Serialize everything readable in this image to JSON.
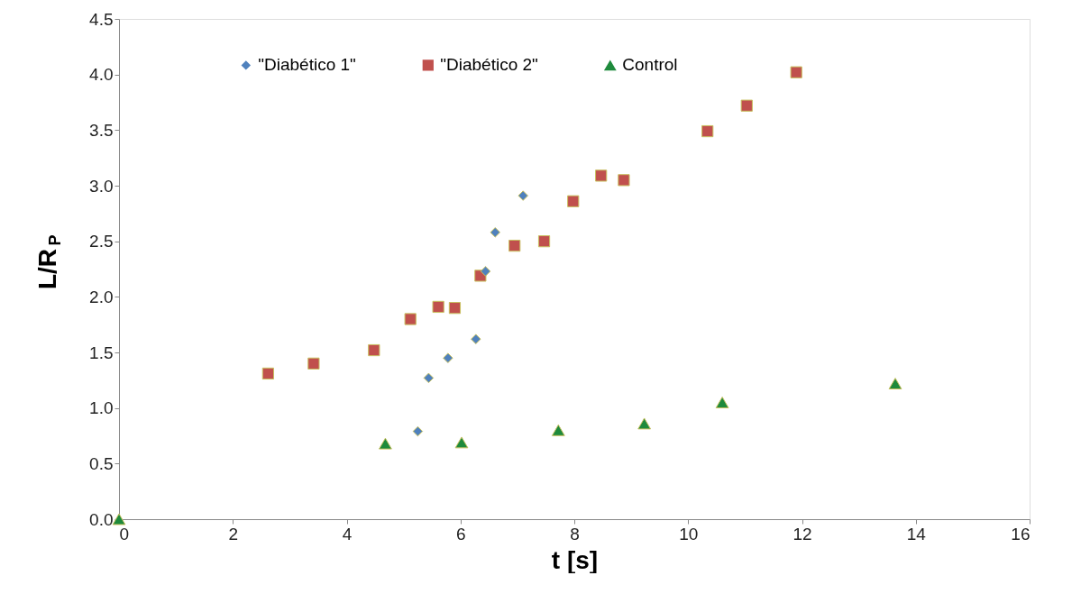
{
  "chart_data": {
    "type": "scatter",
    "xlabel": "t [s]",
    "ylabel": "L/R$_{P}$",
    "xlim": [
      0,
      16
    ],
    "xticks": [
      0,
      2,
      4,
      6,
      8,
      10,
      12,
      14,
      16
    ],
    "ylim": [
      0,
      4.5
    ],
    "yticks": [
      {
        "value": 0,
        "label": "0.0"
      },
      {
        "value": 0.5,
        "label": "0.5"
      },
      {
        "value": 1,
        "label": "1.0"
      },
      {
        "value": 1.5,
        "label": "1.5"
      },
      {
        "value": 2,
        "label": "2.0"
      },
      {
        "value": 2.5,
        "label": "2.5"
      },
      {
        "value": 3,
        "label": "3.0"
      },
      {
        "value": 3.5,
        "label": "3.5"
      },
      {
        "value": 4,
        "label": "4.0"
      },
      {
        "value": 4.5,
        "label": "4.5"
      }
    ],
    "grid": false,
    "legend": "top",
    "series": [
      {
        "name": "\"Diabético 1\"",
        "color": "#4f81bd",
        "marker": "diamond",
        "x": [
          5.25,
          5.44,
          5.78,
          6.27,
          6.44,
          6.61,
          7.1
        ],
        "values": [
          0.79,
          1.27,
          1.45,
          1.62,
          2.23,
          2.58,
          2.91
        ]
      },
      {
        "name": "\"Diabético 2\"",
        "color": "#c0504d",
        "marker": "square",
        "x": [
          2.62,
          3.42,
          4.48,
          5.12,
          5.61,
          5.9,
          6.35,
          6.95,
          7.47,
          7.98,
          8.47,
          8.87,
          10.34,
          11.03,
          11.9
        ],
        "values": [
          1.31,
          1.4,
          1.52,
          1.8,
          1.91,
          1.9,
          2.19,
          2.46,
          2.5,
          2.86,
          3.09,
          3.05,
          3.49,
          3.72,
          4.02
        ]
      },
      {
        "name": "Control",
        "color": "#1e8a3c",
        "marker": "triangle",
        "x": [
          0,
          4.68,
          6.02,
          7.72,
          9.23,
          10.6,
          13.64
        ],
        "values": [
          0,
          0.68,
          0.69,
          0.8,
          0.86,
          1.05,
          1.22
        ]
      }
    ]
  }
}
